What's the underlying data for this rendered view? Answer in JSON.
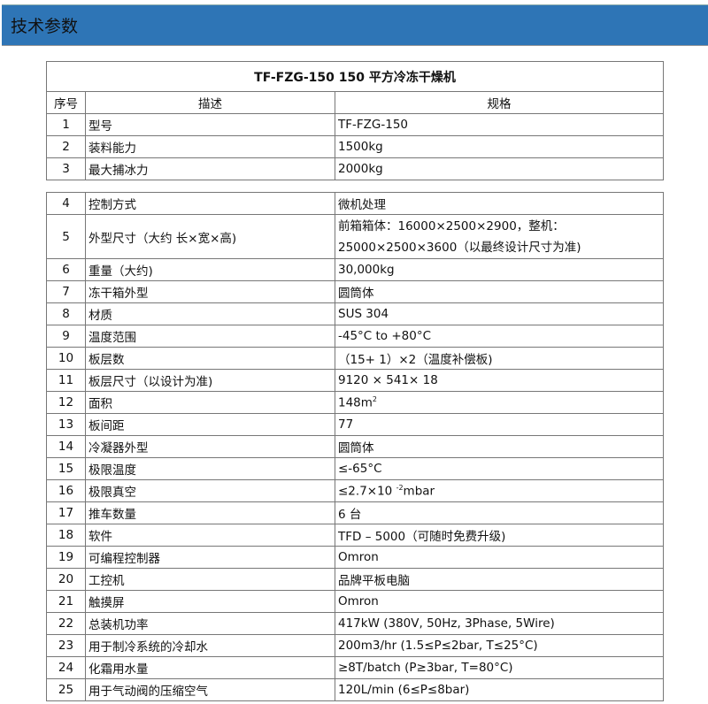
{
  "header": {
    "title": "技术参数"
  },
  "table": {
    "title": "TF-FZG-150 150 平方冷冻干燥机",
    "columns": [
      "序号",
      "描述",
      "规格"
    ],
    "group1": [
      {
        "no": "1",
        "desc": "型号",
        "spec": "TF-FZG-150"
      },
      {
        "no": "2",
        "desc": "装料能力",
        "spec": "1500kg"
      },
      {
        "no": "3",
        "desc": "最大捕冰力",
        "spec": "2000kg"
      }
    ],
    "group2": [
      {
        "no": "4",
        "desc": "控制方式",
        "spec": "微机处理"
      },
      {
        "no": "5",
        "desc": "外型尺寸（大约 长×宽×高)",
        "spec": "前箱箱体：16000×2500×2900，整机：25000×2500×3600（以最终设计尺寸为准)"
      },
      {
        "no": "6",
        "desc": "重量（大约)",
        "spec": "30,000kg"
      },
      {
        "no": "7",
        "desc": "冻干箱外型",
        "spec": "圆筒体"
      },
      {
        "no": "8",
        "desc": "材质",
        "spec": "SUS 304"
      },
      {
        "no": "9",
        "desc": "温度范围",
        "spec": "-45°C to +80°C"
      },
      {
        "no": "10",
        "desc": "板层数",
        "spec": "（15+ 1）×2（温度补偿板)"
      },
      {
        "no": "11",
        "desc": "板层尺寸（以设计为准)",
        "spec": "9120 × 541× 18"
      },
      {
        "no": "12",
        "desc": "面积",
        "spec": "148m",
        "sup": "2"
      },
      {
        "no": "13",
        "desc": "板间距",
        "spec": "77"
      },
      {
        "no": "14",
        "desc": "冷凝器外型",
        "spec": "圆筒体"
      },
      {
        "no": "15",
        "desc": "极限温度",
        "spec": "≤-65°C"
      },
      {
        "no": "16",
        "desc": "极限真空",
        "spec": "≤2.7×10 ",
        "sup": "-2",
        "spec_tail": "mbar"
      },
      {
        "no": "17",
        "desc": "推车数量",
        "spec": "6 台"
      },
      {
        "no": "18",
        "desc": "软件",
        "spec": "TFD – 5000（可随时免费升级)"
      },
      {
        "no": "19",
        "desc": "可编程控制器",
        "spec": "Omron"
      },
      {
        "no": "20",
        "desc": "工控机",
        "spec": "品牌平板电脑"
      },
      {
        "no": "21",
        "desc": "触摸屏",
        "spec": "Omron"
      },
      {
        "no": "22",
        "desc": "总装机功率",
        "spec": "417kW (380V, 50Hz, 3Phase, 5Wire)"
      },
      {
        "no": "23",
        "desc": "用于制冷系统的冷却水",
        "spec": "200m3/hr (1.5≤P≤2bar, T≤25°C)"
      },
      {
        "no": "24",
        "desc": "化霜用水量",
        "spec": "≥8T/batch (P≥3bar, T=80°C)"
      },
      {
        "no": "25",
        "desc": "用于气动阀的压缩空气",
        "spec": "120L/min (6≤P≤8bar)"
      }
    ]
  },
  "colors": {
    "banner": "#2e75b6",
    "border": "#777777"
  }
}
